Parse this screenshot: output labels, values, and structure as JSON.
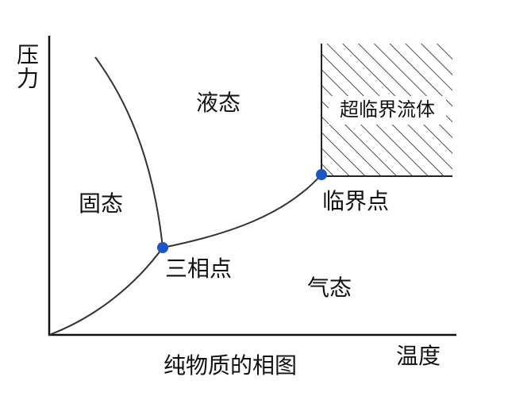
{
  "axes": {
    "y_label": "压力",
    "x_label": "温度"
  },
  "regions": {
    "solid": "固态",
    "liquid": "液态",
    "gas": "气态",
    "supercritical": "超临界流体"
  },
  "points": {
    "triple": "三相点",
    "critical": "临界点"
  },
  "caption": "纯物质的相图"
}
